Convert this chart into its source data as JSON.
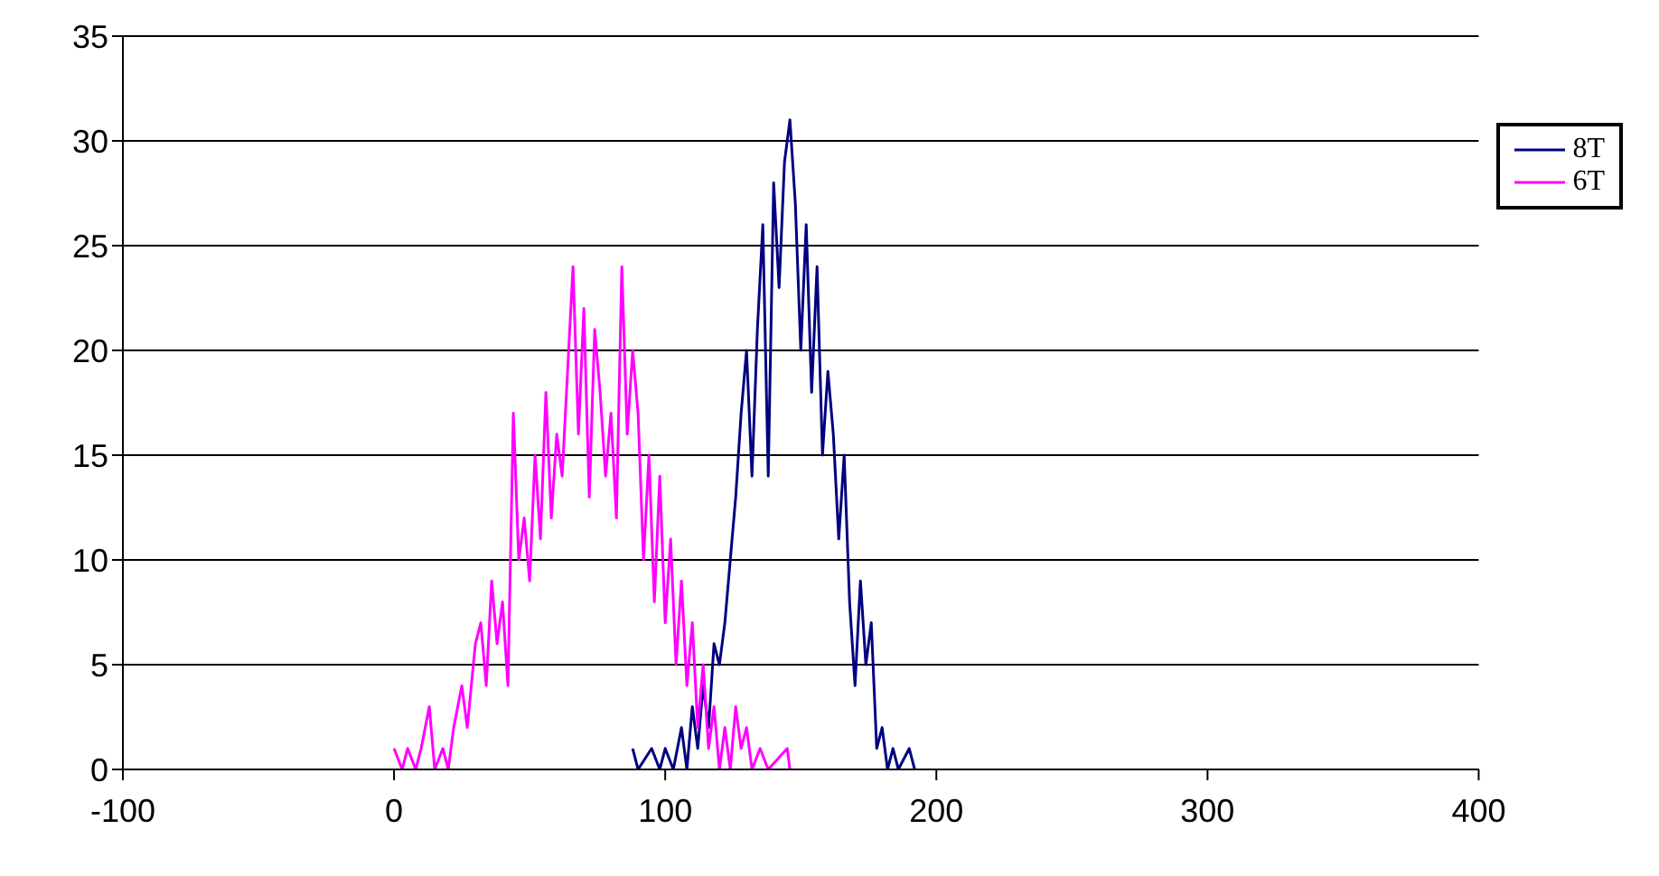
{
  "chart_data": {
    "type": "line",
    "xlim": [
      -100,
      400
    ],
    "xticks": [
      -100,
      0,
      100,
      200,
      300,
      400
    ],
    "ylim": [
      0,
      35
    ],
    "yticks": [
      0,
      5,
      10,
      15,
      20,
      25,
      30,
      35
    ],
    "grid": "y",
    "legend": "right",
    "marker": "none",
    "line_style": "solid",
    "series": [
      {
        "name": "8T",
        "color": "#000080",
        "x": [
          88,
          90,
          95,
          98,
          100,
          103,
          106,
          108,
          110,
          112,
          114,
          116,
          118,
          120,
          122,
          124,
          126,
          128,
          130,
          132,
          134,
          136,
          138,
          140,
          142,
          144,
          146,
          148,
          150,
          152,
          154,
          156,
          158,
          160,
          162,
          164,
          166,
          168,
          170,
          172,
          174,
          176,
          178,
          180,
          182,
          184,
          186,
          190,
          192
        ],
        "values": [
          1,
          0,
          1,
          0,
          1,
          0,
          2,
          0,
          3,
          1,
          4,
          2,
          6,
          5,
          7,
          10,
          13,
          17,
          20,
          14,
          21,
          26,
          14,
          28,
          23,
          29,
          31,
          27,
          20,
          26,
          18,
          24,
          15,
          19,
          16,
          11,
          15,
          8,
          4,
          9,
          5,
          7,
          1,
          2,
          0,
          1,
          0,
          1,
          0
        ]
      },
      {
        "name": "6T",
        "color": "#ff00ff",
        "x": [
          0,
          3,
          5,
          8,
          10,
          13,
          15,
          18,
          20,
          22,
          25,
          27,
          30,
          32,
          34,
          36,
          38,
          40,
          42,
          44,
          46,
          48,
          50,
          52,
          54,
          56,
          58,
          60,
          62,
          64,
          66,
          68,
          70,
          72,
          74,
          76,
          78,
          80,
          82,
          84,
          86,
          88,
          90,
          92,
          94,
          96,
          98,
          100,
          102,
          104,
          106,
          108,
          110,
          112,
          114,
          116,
          118,
          120,
          122,
          124,
          126,
          128,
          130,
          132,
          135,
          138,
          145,
          146
        ],
        "values": [
          1,
          0,
          1,
          0,
          1,
          3,
          0,
          1,
          0,
          2,
          4,
          2,
          6,
          7,
          4,
          9,
          6,
          8,
          4,
          17,
          10,
          12,
          9,
          15,
          11,
          18,
          12,
          16,
          14,
          19,
          24,
          16,
          22,
          13,
          21,
          18,
          14,
          17,
          12,
          24,
          16,
          20,
          17,
          10,
          15,
          8,
          14,
          7,
          11,
          5,
          9,
          4,
          7,
          2,
          5,
          1,
          3,
          0,
          2,
          0,
          3,
          1,
          2,
          0,
          1,
          0,
          1,
          0
        ]
      }
    ]
  }
}
